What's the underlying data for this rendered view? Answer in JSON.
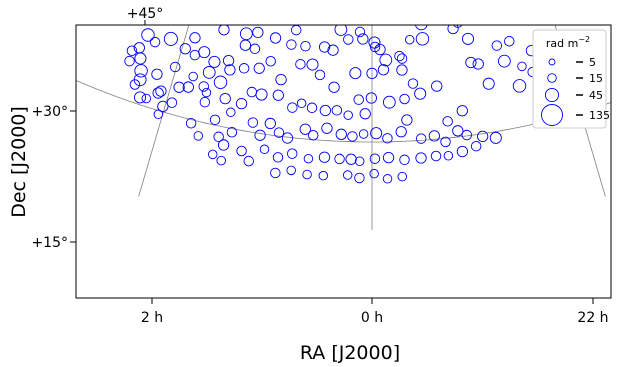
{
  "chart_data": {
    "type": "scatter",
    "title": "",
    "xlabel": "RA [J2000]",
    "ylabel": "Dec [J2000]",
    "projection": "conic",
    "grid": true,
    "x_ticks": [
      "2 h",
      "0 h",
      "22 h"
    ],
    "y_ticks": [
      "+30°",
      "+15°"
    ],
    "top_tick": "+45°",
    "marker_color": "#0000ff",
    "legend": {
      "title": "rad m",
      "title_sup": "−2",
      "placement": "top-right",
      "entries": [
        {
          "label": "5",
          "value": 5
        },
        {
          "label": "15",
          "value": 15
        },
        {
          "label": "45",
          "value": 45
        },
        {
          "label": "135",
          "value": 135
        }
      ]
    },
    "series": [
      {
        "fields": [
          "ra_deg",
          "dec_deg",
          "rm_abs"
        ],
        "points": [
          [
            35.5,
            36.5,
            40
          ],
          [
            33.5,
            36.2,
            30
          ],
          [
            31.4,
            35.4,
            20
          ],
          [
            34.6,
            34.3,
            45
          ],
          [
            35.7,
            33.8,
            30
          ],
          [
            35.4,
            33.0,
            50
          ],
          [
            33.8,
            33.0,
            60
          ],
          [
            34.6,
            32.6,
            25
          ],
          [
            34.0,
            31.5,
            10
          ],
          [
            35.2,
            30.8,
            25
          ],
          [
            35.7,
            30.4,
            15
          ],
          [
            38.5,
            30.3,
            20
          ],
          [
            35.1,
            29.5,
            45
          ],
          [
            35.3,
            28.9,
            15
          ],
          [
            36.1,
            28.5,
            30
          ],
          [
            34.4,
            28.5,
            40
          ],
          [
            35.5,
            27.5,
            15
          ],
          [
            37.3,
            27.8,
            30
          ],
          [
            38.5,
            27.0,
            25
          ],
          [
            39.1,
            26.2,
            25
          ],
          [
            39.6,
            24.6,
            35
          ],
          [
            41.4,
            26.7,
            40
          ],
          [
            40.6,
            27.0,
            25
          ],
          [
            37.0,
            25.4,
            30
          ],
          [
            36.7,
            24.6,
            25
          ],
          [
            35.3,
            25.2,
            30
          ],
          [
            35.7,
            22.8,
            40
          ],
          [
            34.3,
            22.3,
            20
          ],
          [
            36.3,
            21.1,
            25
          ],
          [
            37.2,
            20.5,
            20
          ],
          [
            35.6,
            20.0,
            30
          ],
          [
            37.0,
            19.3,
            20
          ],
          [
            34.9,
            18.7,
            40
          ],
          [
            34.6,
            17.7,
            35
          ],
          [
            35.1,
            17.0,
            20
          ],
          [
            33.8,
            15.8,
            30
          ],
          [
            32.9,
            15.9,
            15
          ],
          [
            31.5,
            16.9,
            25
          ],
          [
            31.2,
            17.2,
            25
          ],
          [
            32.5,
            18.9,
            25
          ],
          [
            30.6,
            14.6,
            15
          ],
          [
            32.1,
            23.2,
            45
          ],
          [
            32.0,
            25.8,
            20
          ],
          [
            28.6,
            27.5,
            25
          ],
          [
            27.1,
            26.8,
            15
          ],
          [
            24.3,
            25.8,
            25
          ],
          [
            20.6,
            25.9,
            35
          ],
          [
            18.8,
            24.4,
            20
          ],
          [
            20.4,
            24.6,
            25
          ],
          [
            22.0,
            21.5,
            25
          ],
          [
            24.6,
            22.0,
            30
          ],
          [
            25.0,
            20.7,
            35
          ],
          [
            23.0,
            19.9,
            40
          ],
          [
            25.3,
            19.0,
            20
          ],
          [
            27.5,
            18.5,
            25
          ],
          [
            28.8,
            18.2,
            25
          ],
          [
            29.2,
            16.3,
            20
          ],
          [
            30.3,
            15.6,
            25
          ],
          [
            21.8,
            18.2,
            25
          ],
          [
            24.7,
            18.4,
            15
          ],
          [
            28.3,
            33.5,
            35
          ],
          [
            27.0,
            33.8,
            25
          ],
          [
            25.9,
            33.5,
            45
          ],
          [
            25.3,
            34.1,
            30
          ],
          [
            24.2,
            33.5,
            30
          ],
          [
            26.8,
            31.2,
            20
          ],
          [
            24.6,
            31.7,
            30
          ],
          [
            25.3,
            30.6,
            45
          ],
          [
            19.2,
            31.2,
            30
          ],
          [
            20.4,
            32.2,
            35
          ],
          [
            18.3,
            31.1,
            50
          ],
          [
            18.1,
            30.1,
            15
          ],
          [
            17.0,
            29.9,
            20
          ],
          [
            11.8,
            28.7,
            30
          ],
          [
            12.9,
            29.9,
            25
          ],
          [
            9.6,
            31.4,
            40
          ],
          [
            10.5,
            30.5,
            20
          ],
          [
            9.1,
            28.8,
            35
          ],
          [
            6.5,
            31.0,
            35
          ],
          [
            4.3,
            30.6,
            40
          ],
          [
            3.8,
            29.3,
            20
          ],
          [
            5.2,
            27.7,
            35
          ],
          [
            2.0,
            27.5,
            20
          ],
          [
            -0.4,
            26.3,
            30
          ],
          [
            -1.3,
            25.5,
            25
          ],
          [
            -2.2,
            24.3,
            35
          ],
          [
            -4.4,
            24.7,
            20
          ],
          [
            -4.7,
            23.1,
            25
          ],
          [
            -6.2,
            26.5,
            15
          ],
          [
            -8.3,
            26.5,
            40
          ],
          [
            -8.3,
            28.2,
            35
          ],
          [
            -10.1,
            29.5,
            35
          ],
          [
            -11.6,
            29.7,
            20
          ],
          [
            -13.5,
            27.3,
            25
          ],
          [
            -14.4,
            27.9,
            20
          ],
          [
            -15.7,
            25.9,
            30
          ],
          [
            -16.7,
            22.9,
            25
          ],
          [
            -17.8,
            20.5,
            30
          ],
          [
            -20.8,
            22.7,
            35
          ],
          [
            -23.3,
            21.7,
            15
          ],
          [
            -22.3,
            19.6,
            40
          ],
          [
            -26.8,
            20.5,
            20
          ],
          [
            -27.5,
            18.4,
            45
          ],
          [
            -28.7,
            16.6,
            30
          ],
          [
            -30.6,
            17.8,
            40
          ],
          [
            -32.3,
            18.5,
            25
          ],
          [
            -31.7,
            19.3,
            35
          ],
          [
            -28.8,
            21.6,
            50
          ],
          [
            -25.3,
            23.2,
            25
          ],
          [
            -20.1,
            24.6,
            20
          ],
          [
            -15.6,
            23.2,
            25
          ],
          [
            -17.5,
            14.3,
            30
          ],
          [
            -13.3,
            17.9,
            25
          ],
          [
            -11.0,
            16.9,
            20
          ],
          [
            -9.9,
            21.0,
            25
          ],
          [
            -7.3,
            20.3,
            30
          ],
          [
            -6.3,
            21.5,
            20
          ],
          [
            -4.9,
            19.8,
            20
          ],
          [
            -2.6,
            19.5,
            35
          ],
          [
            0.1,
            20.0,
            25
          ],
          [
            1.0,
            18.2,
            25
          ],
          [
            3.5,
            18.0,
            15
          ],
          [
            5.2,
            18.5,
            20
          ],
          [
            6.9,
            18.4,
            25
          ],
          [
            8.9,
            18.6,
            20
          ],
          [
            10.5,
            19.0,
            15
          ],
          [
            11.8,
            18.4,
            20
          ],
          [
            14.1,
            19.6,
            25
          ],
          [
            16.6,
            19.4,
            30
          ],
          [
            18.1,
            19.5,
            20
          ],
          [
            19.3,
            18.0,
            25
          ],
          [
            20.6,
            16.8,
            15
          ],
          [
            19.9,
            14.6,
            20
          ],
          [
            17.2,
            16.1,
            20
          ],
          [
            15.9,
            14.8,
            25
          ],
          [
            14.7,
            16.3,
            25
          ],
          [
            13.3,
            15.4,
            20
          ],
          [
            12.0,
            14.9,
            25
          ],
          [
            9.6,
            16.1,
            25
          ],
          [
            8.4,
            15.5,
            20
          ],
          [
            6.5,
            16.4,
            25
          ],
          [
            4.4,
            15.8,
            25
          ],
          [
            2.8,
            15.6,
            20
          ],
          [
            1.2,
            15.9,
            15
          ],
          [
            -0.6,
            16.0,
            30
          ],
          [
            -2.2,
            15.4,
            20
          ],
          [
            -4.2,
            16.1,
            25
          ],
          [
            -5.1,
            17.4,
            25
          ],
          [
            -7.0,
            15.2,
            20
          ],
          [
            -8.9,
            15.4,
            25
          ],
          [
            -10.4,
            14.6,
            20
          ],
          [
            -12.3,
            15.7,
            25
          ],
          [
            -13.5,
            15.1,
            20
          ],
          [
            -15.7,
            14.7,
            25
          ],
          [
            5.8,
            21.1,
            25
          ],
          [
            8.1,
            22.4,
            20
          ],
          [
            9.4,
            23.5,
            30
          ],
          [
            11.3,
            23.4,
            20
          ],
          [
            14.0,
            21.4,
            25
          ],
          [
            2.6,
            22.8,
            30
          ],
          [
            16.0,
            23.3,
            20
          ],
          [
            17.6,
            22.3,
            25
          ],
          [
            19.9,
            22.0,
            20
          ],
          [
            22.5,
            22.5,
            25
          ],
          [
            26.5,
            22.8,
            30
          ],
          [
            28.5,
            24.1,
            25
          ],
          [
            27.8,
            22.2,
            20
          ],
          [
            29.5,
            22.6,
            25
          ],
          [
            30.2,
            20.3,
            20
          ],
          [
            27.2,
            19.8,
            15
          ],
          [
            24.6,
            17.3,
            20
          ],
          [
            22.6,
            15.6,
            20
          ],
          [
            21.6,
            13.8,
            20
          ],
          [
            20.7,
            13.0,
            25
          ],
          [
            24.4,
            13.4,
            15
          ],
          [
            25.8,
            14.6,
            20
          ],
          [
            18.1,
            12.7,
            20
          ],
          [
            15.0,
            13.3,
            15
          ],
          [
            13.0,
            12.6,
            20
          ],
          [
            11.1,
            13.2,
            20
          ],
          [
            8.8,
            12.8,
            15
          ],
          [
            6.6,
            13.1,
            25
          ],
          [
            4.5,
            13.0,
            20
          ],
          [
            2.9,
            13.0,
            25
          ],
          [
            1.7,
            12.8,
            15
          ],
          [
            -0.4,
            13.1,
            20
          ],
          [
            -2.3,
            13.2,
            25
          ],
          [
            -4.5,
            12.9,
            20
          ],
          [
            -6.8,
            13.0,
            25
          ],
          [
            -8.9,
            13.1,
            20
          ],
          [
            -10.6,
            13.0,
            15
          ],
          [
            -12.6,
            13.3,
            25
          ],
          [
            -14.6,
            13.7,
            20
          ],
          [
            -4.1,
            11.0,
            15
          ],
          [
            -2.1,
            10.8,
            15
          ],
          [
            -0.3,
            11.4,
            15
          ],
          [
            1.7,
            10.9,
            20
          ],
          [
            3.3,
            11.2,
            15
          ],
          [
            6.6,
            11.0,
            15
          ],
          [
            8.8,
            11.0,
            15
          ],
          [
            11.0,
            11.3,
            15
          ],
          [
            13.1,
            10.8,
            20
          ],
          [
            16.9,
            11.7,
            20
          ],
          [
            20.6,
            11.2,
            15
          ],
          [
            21.9,
            11.7,
            15
          ],
          [
            -1.8,
            23.2,
            25
          ],
          [
            0.0,
            22.8,
            25
          ],
          [
            -0.5,
            25.8,
            20
          ],
          [
            1.5,
            26.7,
            25
          ],
          [
            3.9,
            26.6,
            20
          ],
          [
            6.3,
            25.3,
            25
          ],
          [
            7.7,
            25.6,
            25
          ],
          [
            10.8,
            25.5,
            20
          ],
          [
            13.1,
            25.5,
            20
          ],
          [
            15.8,
            26.0,
            25
          ],
          [
            18.8,
            26.3,
            25
          ],
          [
            -4.8,
            24.4,
            20
          ],
          [
            -22.2,
            24.8,
            20
          ],
          [
            -24.7,
            20.8,
            20
          ],
          [
            -29.8,
            23.6,
            15
          ],
          [
            -30.3,
            20.5,
            25
          ],
          [
            9.5,
            28.5,
            15
          ],
          [
            12.6,
            27.2,
            20
          ],
          [
            2.0,
            19.8,
            20
          ]
        ]
      }
    ]
  }
}
